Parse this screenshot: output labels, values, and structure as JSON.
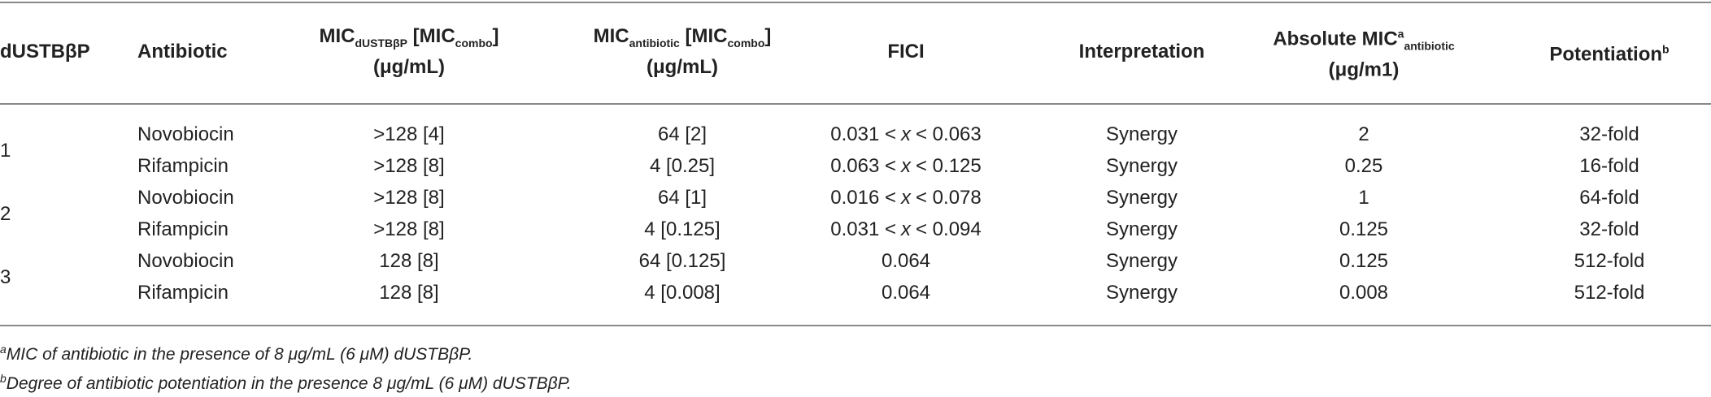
{
  "table": {
    "header": [
      {
        "text": "dUSTBβP"
      },
      {
        "text": "Antibiotic"
      },
      {
        "text": "MIC",
        "sub": "dUSTBβP",
        "text2": "[MIC",
        "sub2": "combo",
        "text3": "]",
        "line2": "(μg/mL)"
      },
      {
        "text": "MIC",
        "sub": "antibiotic",
        "text2": "[MIC",
        "sub2": "combo",
        "text3": "]",
        "line2": "(μg/mL)"
      },
      {
        "text": "FICI"
      },
      {
        "text": "Interpretation"
      },
      {
        "text": "Absolute MIC",
        "sup": "a",
        "sub": "antibiotic",
        "line2": "(μg/m1)"
      },
      {
        "text": "Potentiation",
        "sup": "b"
      }
    ],
    "groups": [
      {
        "label": "1",
        "rows": [
          [
            "Novobiocin",
            ">128 [4]",
            "64 [2]",
            [
              "0.031 <",
              "x",
              "< 0.063"
            ],
            "Synergy",
            "2",
            "32-fold"
          ],
          [
            "Rifampicin",
            ">128 [8]",
            "4 [0.25]",
            [
              "0.063 <",
              "x",
              "< 0.125"
            ],
            "Synergy",
            "0.25",
            "16-fold"
          ]
        ]
      },
      {
        "label": "2",
        "rows": [
          [
            "Novobiocin",
            ">128 [8]",
            "64 [1]",
            [
              "0.016 <",
              "x",
              "< 0.078"
            ],
            "Synergy",
            "1",
            "64-fold"
          ],
          [
            "Rifampicin",
            ">128 [8]",
            "4 [0.125]",
            [
              "0.031 <",
              "x",
              "< 0.094"
            ],
            "Synergy",
            "0.125",
            "32-fold"
          ]
        ]
      },
      {
        "label": "3",
        "rows": [
          [
            "Novobiocin",
            "128 [8]",
            "64 [0.125]",
            "0.064",
            "Synergy",
            "0.125",
            "512-fold"
          ],
          [
            "Rifampicin",
            "128 [8]",
            "4 [0.008]",
            "0.064",
            "Synergy",
            "0.008",
            "512-fold"
          ]
        ]
      }
    ],
    "footnotes": [
      {
        "mark": "a",
        "text": "MIC of antibiotic in the presence of 8 μg/mL (6 μM) dUSTBβP."
      },
      {
        "mark": "b",
        "text": "Degree of antibiotic potentiation in the presence 8 μg/mL (6 μM) dUSTBβP."
      }
    ]
  }
}
